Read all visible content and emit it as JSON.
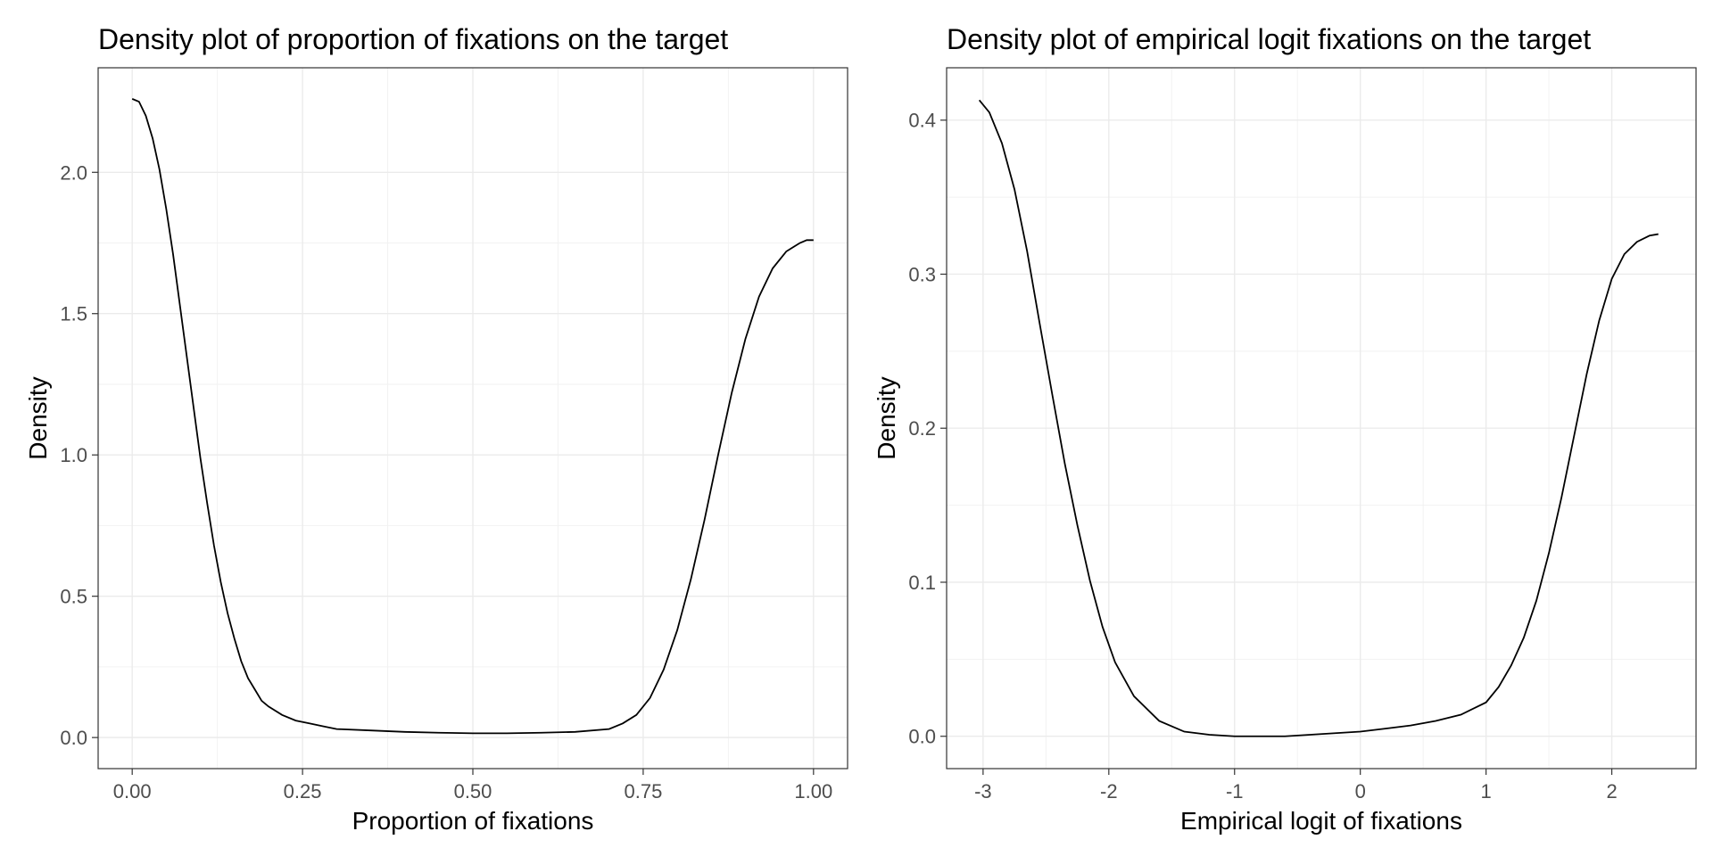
{
  "chart_data": [
    {
      "type": "line",
      "title": "Density plot of proportion of fixations on the target",
      "xlabel": "Proportion of fixations",
      "ylabel": "Density",
      "xlim": [
        -0.05,
        1.05
      ],
      "ylim": [
        -0.11,
        2.37
      ],
      "x_ticks": [
        0,
        0.25,
        0.5,
        0.75,
        1
      ],
      "x_tick_labels": [
        "0.00",
        "0.25",
        "0.50",
        "0.75",
        "1.00"
      ],
      "y_ticks": [
        0,
        0.5,
        1,
        1.5,
        2
      ],
      "y_tick_labels": [
        "0.0",
        "0.5",
        "1.0",
        "1.5",
        "2.0"
      ],
      "grid": true,
      "series": [
        {
          "x": [
            0,
            0.01,
            0.02,
            0.03,
            0.04,
            0.05,
            0.06,
            0.07,
            0.08,
            0.09,
            0.1,
            0.11,
            0.12,
            0.13,
            0.14,
            0.15,
            0.16,
            0.17,
            0.18,
            0.19,
            0.2,
            0.22,
            0.24,
            0.26,
            0.28,
            0.3,
            0.35,
            0.4,
            0.45,
            0.5,
            0.55,
            0.6,
            0.65,
            0.7,
            0.72,
            0.74,
            0.76,
            0.78,
            0.8,
            0.82,
            0.84,
            0.86,
            0.88,
            0.9,
            0.92,
            0.94,
            0.96,
            0.98,
            0.99,
            1.0
          ],
          "y": [
            2.26,
            2.25,
            2.2,
            2.12,
            2.01,
            1.87,
            1.71,
            1.53,
            1.35,
            1.17,
            0.99,
            0.83,
            0.68,
            0.55,
            0.44,
            0.35,
            0.27,
            0.21,
            0.17,
            0.13,
            0.11,
            0.08,
            0.06,
            0.05,
            0.04,
            0.03,
            0.025,
            0.02,
            0.017,
            0.015,
            0.015,
            0.017,
            0.02,
            0.03,
            0.05,
            0.08,
            0.14,
            0.24,
            0.38,
            0.56,
            0.77,
            1.0,
            1.22,
            1.41,
            1.56,
            1.66,
            1.72,
            1.75,
            1.76,
            1.76
          ]
        }
      ]
    },
    {
      "type": "line",
      "title": "Density plot of empirical logit fixations on the target",
      "xlabel": "Empirical logit of fixations",
      "ylabel": "Density",
      "xlim": [
        -3.29,
        2.67
      ],
      "ylim": [
        -0.021,
        0.434
      ],
      "x_ticks": [
        -3,
        -2,
        -1,
        0,
        1,
        2
      ],
      "x_tick_labels": [
        "-3",
        "-2",
        "-1",
        "0",
        "1",
        "2"
      ],
      "y_ticks": [
        0,
        0.1,
        0.2,
        0.3,
        0.4
      ],
      "y_tick_labels": [
        "0.0",
        "0.1",
        "0.2",
        "0.3",
        "0.4"
      ],
      "grid": true,
      "series": [
        {
          "x": [
            -3.03,
            -2.95,
            -2.85,
            -2.75,
            -2.65,
            -2.55,
            -2.45,
            -2.35,
            -2.25,
            -2.15,
            -2.05,
            -1.95,
            -1.8,
            -1.6,
            -1.4,
            -1.2,
            -1.0,
            -0.8,
            -0.6,
            -0.4,
            -0.2,
            0.0,
            0.2,
            0.4,
            0.6,
            0.8,
            1.0,
            1.1,
            1.2,
            1.3,
            1.4,
            1.5,
            1.6,
            1.7,
            1.8,
            1.9,
            2.0,
            2.1,
            2.2,
            2.3,
            2.37
          ],
          "y": [
            0.413,
            0.405,
            0.385,
            0.355,
            0.315,
            0.268,
            0.222,
            0.177,
            0.137,
            0.101,
            0.071,
            0.048,
            0.026,
            0.01,
            0.003,
            0.001,
            0.0,
            0.0,
            0.0,
            0.001,
            0.002,
            0.003,
            0.005,
            0.007,
            0.01,
            0.014,
            0.022,
            0.032,
            0.046,
            0.064,
            0.088,
            0.119,
            0.155,
            0.195,
            0.235,
            0.27,
            0.297,
            0.313,
            0.321,
            0.325,
            0.326
          ]
        }
      ]
    }
  ]
}
